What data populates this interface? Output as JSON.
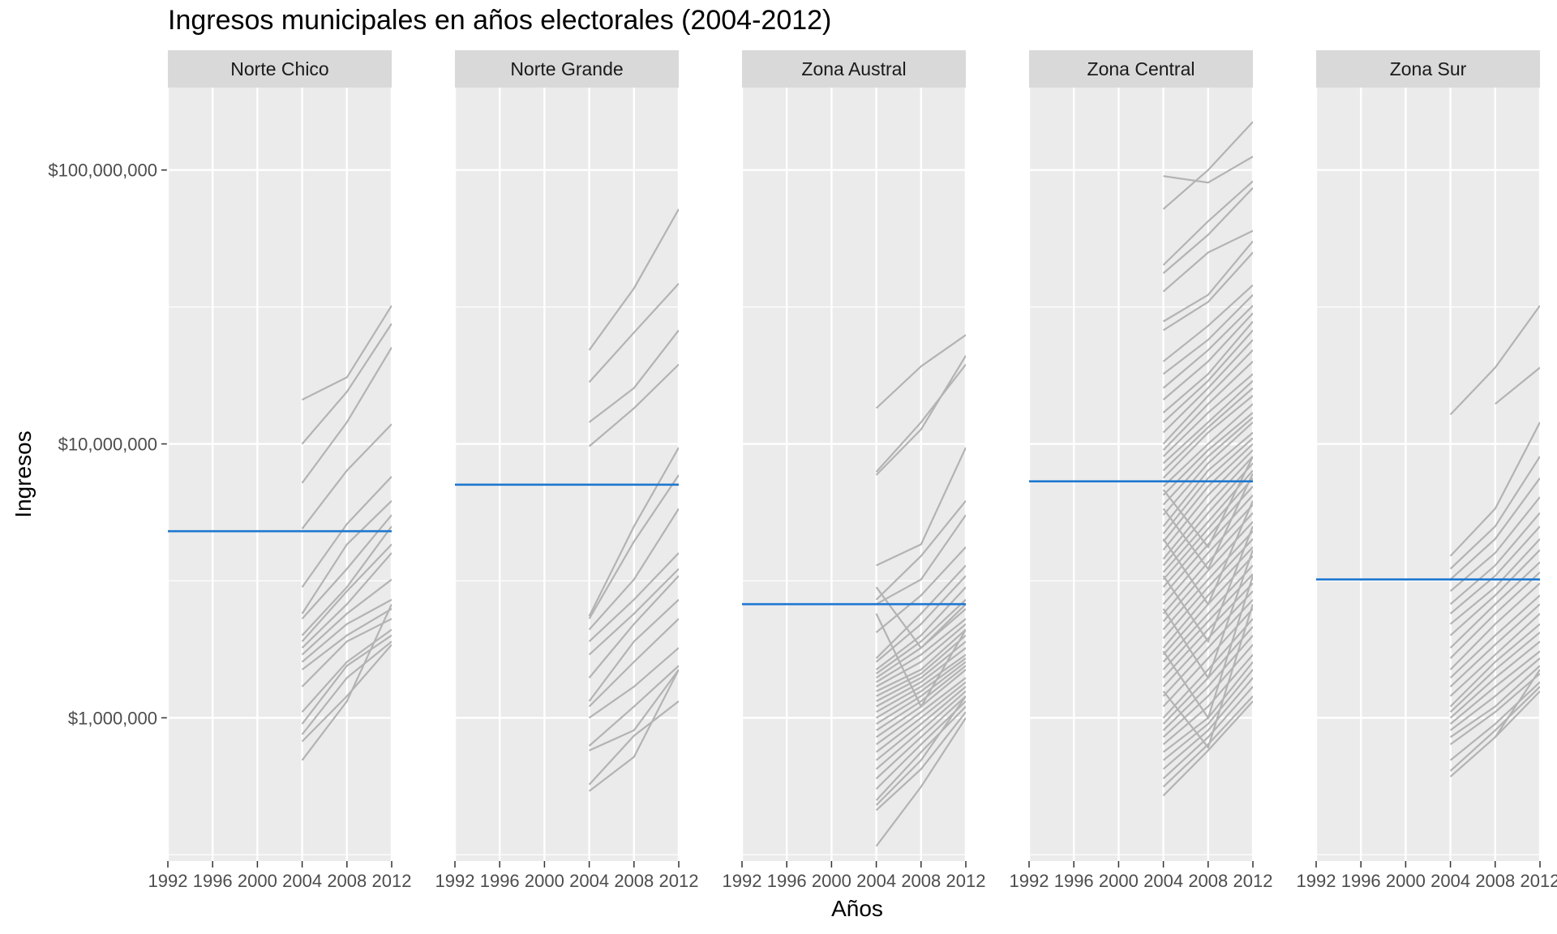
{
  "chart_data": {
    "type": "line",
    "title": "Ingresos municipales en años electorales (2004-2012)",
    "xlabel": "Años",
    "ylabel": "Ingresos",
    "y_scale": "log10",
    "ylim": [
      300000,
      200000000
    ],
    "xlim": [
      1992,
      2012
    ],
    "x_ticks": [
      1992,
      1996,
      2000,
      2004,
      2008,
      2012
    ],
    "y_ticks": [
      1000000,
      10000000,
      100000000
    ],
    "y_tick_labels": [
      "$1,000,000",
      "$10,000,000",
      "$100,000,000"
    ],
    "grid": true,
    "colors": {
      "panel_bg": "#ebebeb",
      "strip_bg": "#d9d9d9",
      "series_line": "#b3b3b3",
      "mean_line": "#1f78d1",
      "grid": "#ffffff"
    },
    "x_years": [
      2004,
      2008,
      2012
    ],
    "facets": [
      {
        "name": "Norte Chico",
        "mean": 4800000,
        "series": [
          [
            14500000,
            17500000,
            32000000
          ],
          [
            10000000,
            15500000,
            27500000
          ],
          [
            7200000,
            12000000,
            22500000
          ],
          [
            4900000,
            8000000,
            11800000
          ],
          [
            3000000,
            5100000,
            7600000
          ],
          [
            2400000,
            4300000,
            6200000
          ],
          [
            2300000,
            3500000,
            5500000
          ],
          [
            2000000,
            3000000,
            5000000
          ],
          [
            1900000,
            2900000,
            4300000
          ],
          [
            1800000,
            2600000,
            4000000
          ],
          [
            1700000,
            2400000,
            3200000
          ],
          [
            1600000,
            2200000,
            2700000
          ],
          [
            1500000,
            2000000,
            2500000
          ],
          [
            1300000,
            1900000,
            2300000
          ],
          [
            1050000,
            1600000,
            2100000
          ],
          [
            950000,
            1550000,
            2000000
          ],
          [
            870000,
            1400000,
            1900000
          ],
          [
            820000,
            1200000,
            1850000
          ],
          [
            700000,
            1150000,
            2600000
          ]
        ]
      },
      {
        "name": "Norte Grande",
        "mean": 7100000,
        "series": [
          [
            22000000,
            37000000,
            72000000
          ],
          [
            16800000,
            25500000,
            38500000
          ],
          [
            12000000,
            16000000,
            26000000
          ],
          [
            9800000,
            13500000,
            19500000
          ],
          [
            2350000,
            5000000,
            9700000
          ],
          [
            2300000,
            4400000,
            7700000
          ],
          [
            2100000,
            3200000,
            5800000
          ],
          [
            1900000,
            2700000,
            4000000
          ],
          [
            1700000,
            2400000,
            3500000
          ],
          [
            1400000,
            2200000,
            3300000
          ],
          [
            1150000,
            1900000,
            2700000
          ],
          [
            1100000,
            1600000,
            2300000
          ],
          [
            1000000,
            1300000,
            1800000
          ],
          [
            790000,
            1100000,
            1550000
          ],
          [
            760000,
            900000,
            1500000
          ],
          [
            570000,
            860000,
            1150000
          ],
          [
            540000,
            720000,
            1500000
          ]
        ]
      },
      {
        "name": "Zona Austral",
        "mean": 2600000,
        "series": [
          [
            13500000,
            19200000,
            25000000
          ],
          [
            7700000,
            11300000,
            21000000
          ],
          [
            7900000,
            12000000,
            19500000
          ],
          [
            3600000,
            4300000,
            9700000
          ],
          [
            2700000,
            3900000,
            6200000
          ],
          [
            2600000,
            3200000,
            5500000
          ],
          [
            2050000,
            2800000,
            4200000
          ],
          [
            1650000,
            2400000,
            3600000
          ],
          [
            1600000,
            2200000,
            3300000
          ],
          [
            1500000,
            2000000,
            3000000
          ],
          [
            1450000,
            1900000,
            2700000
          ],
          [
            1400000,
            1800000,
            2500000
          ],
          [
            1350000,
            1700000,
            2300000
          ],
          [
            1300000,
            1600000,
            2200000
          ],
          [
            1250000,
            1500000,
            2100000
          ],
          [
            1200000,
            1450000,
            2000000
          ],
          [
            1150000,
            1400000,
            1900000
          ],
          [
            1100000,
            1350000,
            1800000
          ],
          [
            1050000,
            1300000,
            1700000
          ],
          [
            1000000,
            1250000,
            1650000
          ],
          [
            950000,
            1200000,
            1600000
          ],
          [
            900000,
            1150000,
            1550000
          ],
          [
            850000,
            1100000,
            1500000
          ],
          [
            800000,
            1050000,
            1400000
          ],
          [
            750000,
            1000000,
            1350000
          ],
          [
            700000,
            950000,
            1300000
          ],
          [
            650000,
            900000,
            1250000
          ],
          [
            600000,
            850000,
            1200000
          ],
          [
            550000,
            800000,
            1150000
          ],
          [
            500000,
            750000,
            1100000
          ],
          [
            480000,
            700000,
            1200000
          ],
          [
            460000,
            650000,
            1050000
          ],
          [
            340000,
            560000,
            1000000
          ],
          [
            3000000,
            1800000,
            2600000
          ],
          [
            2400000,
            1100000,
            2100000
          ]
        ]
      },
      {
        "name": "Zona Central",
        "mean": 7300000,
        "series": [
          [
            95000000,
            90000000,
            112000000
          ],
          [
            72000000,
            100000000,
            150000000
          ],
          [
            45000000,
            65000000,
            91000000
          ],
          [
            42000000,
            58000000,
            86000000
          ],
          [
            36000000,
            50000000,
            60000000
          ],
          [
            28000000,
            35000000,
            55000000
          ],
          [
            26000000,
            33000000,
            50000000
          ],
          [
            20000000,
            27000000,
            38000000
          ],
          [
            18000000,
            24000000,
            35000000
          ],
          [
            16000000,
            22000000,
            32000000
          ],
          [
            14500000,
            20000000,
            30000000
          ],
          [
            13000000,
            18000000,
            28000000
          ],
          [
            12000000,
            17000000,
            26000000
          ],
          [
            11000000,
            16000000,
            24000000
          ],
          [
            10000000,
            15000000,
            22000000
          ],
          [
            9500000,
            14000000,
            20000000
          ],
          [
            9000000,
            13000000,
            18000000
          ],
          [
            8500000,
            12000000,
            17000000
          ],
          [
            8000000,
            11500000,
            16000000
          ],
          [
            7500000,
            11000000,
            15000000
          ],
          [
            7000000,
            10000000,
            14000000
          ],
          [
            6500000,
            9500000,
            13000000
          ],
          [
            6000000,
            9000000,
            12500000
          ],
          [
            5500000,
            8500000,
            12000000
          ],
          [
            5000000,
            8000000,
            11000000
          ],
          [
            4700000,
            7500000,
            10500000
          ],
          [
            4400000,
            7000000,
            10000000
          ],
          [
            4100000,
            6500000,
            9500000
          ],
          [
            3800000,
            6000000,
            9000000
          ],
          [
            3600000,
            5600000,
            8500000
          ],
          [
            3400000,
            5200000,
            8000000
          ],
          [
            3200000,
            4900000,
            7500000
          ],
          [
            3000000,
            4600000,
            7000000
          ],
          [
            2800000,
            4300000,
            6500000
          ],
          [
            2600000,
            4000000,
            6000000
          ],
          [
            2400000,
            3700000,
            5600000
          ],
          [
            2250000,
            3450000,
            5200000
          ],
          [
            2100000,
            3200000,
            4800000
          ],
          [
            1950000,
            3000000,
            4500000
          ],
          [
            1800000,
            2800000,
            4200000
          ],
          [
            1700000,
            2600000,
            3900000
          ],
          [
            1600000,
            2400000,
            3600000
          ],
          [
            1500000,
            2250000,
            3350000
          ],
          [
            1400000,
            2100000,
            3100000
          ],
          [
            1300000,
            1950000,
            2900000
          ],
          [
            1200000,
            1800000,
            2700000
          ],
          [
            1100000,
            1650000,
            2500000
          ],
          [
            1000000,
            1500000,
            2300000
          ],
          [
            950000,
            1400000,
            2150000
          ],
          [
            900000,
            1300000,
            2000000
          ],
          [
            850000,
            1200000,
            1850000
          ],
          [
            800000,
            1100000,
            1700000
          ],
          [
            750000,
            1000000,
            1600000
          ],
          [
            700000,
            950000,
            1500000
          ],
          [
            650000,
            900000,
            1400000
          ],
          [
            600000,
            850000,
            1300000
          ],
          [
            560000,
            800000,
            1200000
          ],
          [
            520000,
            760000,
            1150000
          ],
          [
            6800000,
            4200000,
            9000000
          ],
          [
            5800000,
            3500000,
            7800000
          ],
          [
            4500000,
            2600000,
            6200000
          ],
          [
            3300000,
            1900000,
            5000000
          ],
          [
            2500000,
            1400000,
            4100000
          ],
          [
            1750000,
            1000000,
            3300000
          ],
          [
            1250000,
            780000,
            2600000
          ]
        ]
      },
      {
        "name": "Zona Sur",
        "mean": 3200000,
        "series": [
          [
            12800000,
            19000000,
            32000000
          ],
          [
            14000000,
            19000000
          ],
          [
            3900000,
            5800000,
            12000000
          ],
          [
            3500000,
            5000000,
            9000000
          ],
          [
            3200000,
            4500000,
            7500000
          ],
          [
            2900000,
            4000000,
            6400000
          ],
          [
            2600000,
            3600000,
            5600000
          ],
          [
            2400000,
            3300000,
            5000000
          ],
          [
            2200000,
            3000000,
            4500000
          ],
          [
            2000000,
            2800000,
            4100000
          ],
          [
            1800000,
            2600000,
            3700000
          ],
          [
            1650000,
            2400000,
            3400000
          ],
          [
            1500000,
            2200000,
            3100000
          ],
          [
            1400000,
            2000000,
            2800000
          ],
          [
            1300000,
            1850000,
            2600000
          ],
          [
            1200000,
            1700000,
            2400000
          ],
          [
            1100000,
            1600000,
            2200000
          ],
          [
            1050000,
            1500000,
            2050000
          ],
          [
            1000000,
            1400000,
            1900000
          ],
          [
            950000,
            1300000,
            1750000
          ],
          [
            900000,
            1200000,
            1650000
          ],
          [
            850000,
            1100000,
            1550000
          ],
          [
            800000,
            1050000,
            1450000
          ],
          [
            700000,
            950000,
            1350000
          ],
          [
            640000,
            900000,
            1300000
          ],
          [
            610000,
            850000,
            1250000
          ],
          [
            850000,
            1500000
          ]
        ]
      }
    ]
  }
}
